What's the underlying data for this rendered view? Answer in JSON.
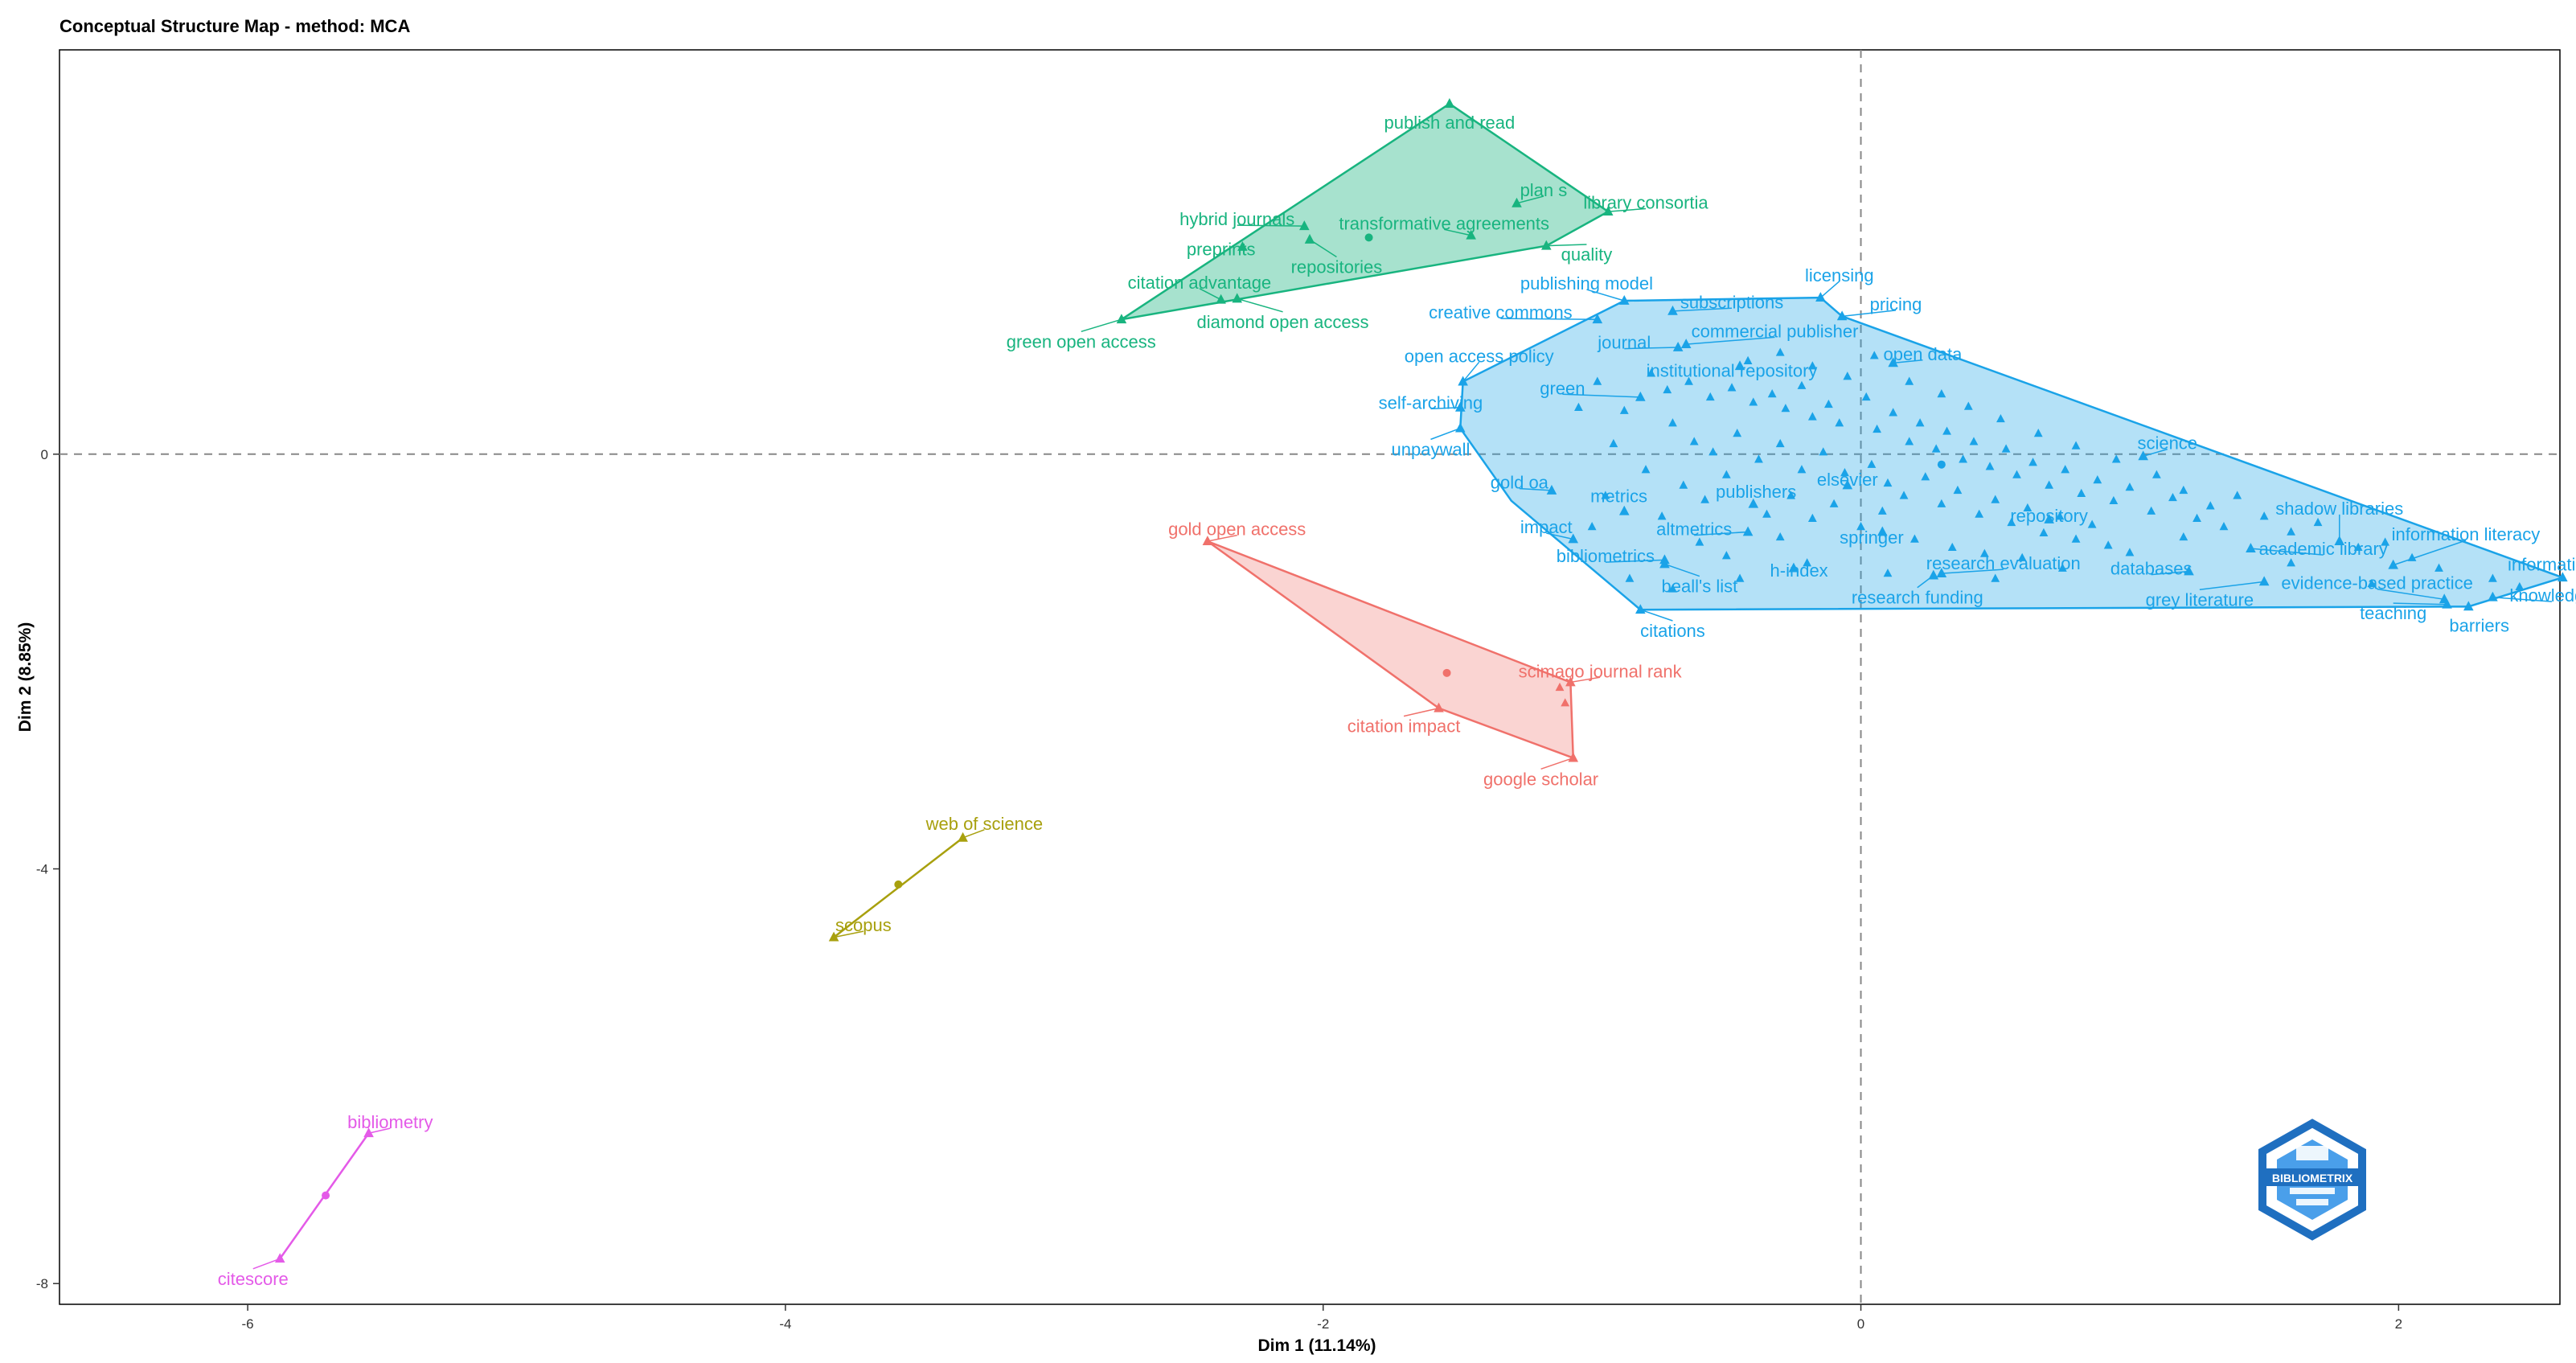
{
  "chart_data": {
    "type": "scatter",
    "title": "Conceptual Structure Map - method: MCA",
    "xlabel": "Dim 1 (11.14%)",
    "ylabel": "Dim 2 (8.85%)",
    "xlim": [
      -6.7,
      2.6
    ],
    "ylim": [
      -8.2,
      3.9
    ],
    "xticks": [
      -6,
      -4,
      -2,
      0,
      2
    ],
    "yticks": [
      -8,
      -4,
      0
    ],
    "reference_lines": {
      "x": 0,
      "y": 0
    },
    "logo": {
      "text": "BIBLIOMETRIX",
      "color": "#1f6fc0"
    },
    "clusters": [
      {
        "id": "green",
        "color": "#18b47f",
        "fill": "rgba(24,180,127,0.38)",
        "centroid": [
          -1.83,
          2.09
        ],
        "hull": [
          [
            -2.75,
            1.3
          ],
          [
            -1.53,
            3.38
          ],
          [
            -0.94,
            2.34
          ],
          [
            -1.17,
            2.01
          ]
        ],
        "points": [
          {
            "label": "publish and read",
            "x": -1.53,
            "y": 3.38,
            "lx": -1.53,
            "ly": 3.2
          },
          {
            "label": "plan s",
            "x": -1.28,
            "y": 2.42,
            "lx": -1.18,
            "ly": 2.55
          },
          {
            "label": "library consortia",
            "x": -0.94,
            "y": 2.34,
            "lx": -0.8,
            "ly": 2.43
          },
          {
            "label": "hybrid journals",
            "x": -2.07,
            "y": 2.2,
            "lx": -2.32,
            "ly": 2.27
          },
          {
            "label": "transformative agreements",
            "x": -1.45,
            "y": 2.11,
            "lx": -1.55,
            "ly": 2.23
          },
          {
            "label": "preprints",
            "x": -2.3,
            "y": 2.0,
            "lx": -2.38,
            "ly": 1.98
          },
          {
            "label": "repositories",
            "x": -2.05,
            "y": 2.07,
            "lx": -1.95,
            "ly": 1.81
          },
          {
            "label": "quality",
            "x": -1.17,
            "y": 2.01,
            "lx": -1.02,
            "ly": 1.93
          },
          {
            "label": "citation advantage",
            "x": -2.38,
            "y": 1.49,
            "lx": -2.46,
            "ly": 1.66
          },
          {
            "label": "diamond open access",
            "x": -2.32,
            "y": 1.5,
            "lx": -2.15,
            "ly": 1.28
          },
          {
            "label": "green open access",
            "x": -2.75,
            "y": 1.3,
            "lx": -2.9,
            "ly": 1.09
          }
        ]
      },
      {
        "id": "blue",
        "color": "#1aa3e8",
        "fill": "rgba(26,163,232,0.33)",
        "centroid": [
          0.3,
          -0.1
        ],
        "hull": [
          [
            -0.88,
            1.48
          ],
          [
            -0.15,
            1.51
          ],
          [
            -0.07,
            1.33
          ],
          [
            2.61,
            -1.19
          ],
          [
            2.26,
            -1.47
          ],
          [
            -0.82,
            -1.5
          ],
          [
            -1.3,
            -0.45
          ],
          [
            -1.49,
            0.25
          ],
          [
            -1.48,
            0.7
          ]
        ],
        "points": [
          {
            "label": "licensing",
            "x": -0.15,
            "y": 1.51,
            "lx": -0.08,
            "ly": 1.73
          },
          {
            "label": "pricing",
            "x": -0.07,
            "y": 1.33,
            "lx": 0.13,
            "ly": 1.45
          },
          {
            "label": "publishing model",
            "x": -0.88,
            "y": 1.48,
            "lx": -1.02,
            "ly": 1.65
          },
          {
            "label": "subscriptions",
            "x": -0.7,
            "y": 1.38,
            "lx": -0.48,
            "ly": 1.47
          },
          {
            "label": "creative commons",
            "x": -0.98,
            "y": 1.3,
            "lx": -1.34,
            "ly": 1.37
          },
          {
            "label": "commercial publisher",
            "x": -0.65,
            "y": 1.06,
            "lx": -0.32,
            "ly": 1.19
          },
          {
            "label": "journal",
            "x": -0.68,
            "y": 1.03,
            "lx": -0.88,
            "ly": 1.08
          },
          {
            "label": "open access policy",
            "x": -1.48,
            "y": 0.7,
            "lx": -1.42,
            "ly": 0.95
          },
          {
            "label": "institutional repository",
            "x": -0.45,
            "y": 0.85,
            "lx": -0.48,
            "ly": 0.81
          },
          {
            "label": "open data",
            "x": 0.12,
            "y": 0.88,
            "lx": 0.23,
            "ly": 0.97
          },
          {
            "label": "green",
            "x": -0.82,
            "y": 0.55,
            "lx": -1.11,
            "ly": 0.64
          },
          {
            "label": "self-archiving",
            "x": -1.49,
            "y": 0.45,
            "lx": -1.6,
            "ly": 0.5
          },
          {
            "label": "unpaywall",
            "x": -1.49,
            "y": 0.25,
            "lx": -1.6,
            "ly": 0.05
          },
          {
            "label": "science",
            "x": 1.05,
            "y": -0.02,
            "lx": 1.14,
            "ly": 0.11
          },
          {
            "label": "gold oa",
            "x": -1.15,
            "y": -0.35,
            "lx": -1.27,
            "ly": -0.27
          },
          {
            "label": "elsevier",
            "x": -0.05,
            "y": -0.3,
            "lx": -0.05,
            "ly": -0.24
          },
          {
            "label": "metrics",
            "x": -0.88,
            "y": -0.55,
            "lx": -0.9,
            "ly": -0.4
          },
          {
            "label": "publishers",
            "x": -0.4,
            "y": -0.48,
            "lx": -0.39,
            "ly": -0.36
          },
          {
            "label": "shadow libraries",
            "x": 1.78,
            "y": -0.84,
            "lx": 1.78,
            "ly": -0.52
          },
          {
            "label": "repository",
            "x": 0.7,
            "y": -0.63,
            "lx": 0.7,
            "ly": -0.59
          },
          {
            "label": "impact",
            "x": -1.07,
            "y": -0.82,
            "lx": -1.17,
            "ly": -0.7
          },
          {
            "label": "altmetrics",
            "x": -0.42,
            "y": -0.75,
            "lx": -0.62,
            "ly": -0.72
          },
          {
            "label": "springer",
            "x": 0.08,
            "y": -0.75,
            "lx": 0.04,
            "ly": -0.8
          },
          {
            "label": "information literacy",
            "x": 1.98,
            "y": -1.07,
            "lx": 2.25,
            "ly": -0.77
          },
          {
            "label": "academic library",
            "x": 1.45,
            "y": -0.91,
            "lx": 1.72,
            "ly": -0.91
          },
          {
            "label": "bibliometrics",
            "x": -0.73,
            "y": -1.02,
            "lx": -0.95,
            "ly": -0.98
          },
          {
            "label": "information access",
            "x": 2.61,
            "y": -1.19,
            "lx": 2.68,
            "ly": -1.06
          },
          {
            "label": "research evaluation",
            "x": 0.3,
            "y": -1.15,
            "lx": 0.53,
            "ly": -1.05
          },
          {
            "label": "databases",
            "x": 1.22,
            "y": -1.13,
            "lx": 1.08,
            "ly": -1.1
          },
          {
            "label": "h-index",
            "x": -0.25,
            "y": -1.1,
            "lx": -0.23,
            "ly": -1.12
          },
          {
            "label": "evidence-based practice",
            "x": 2.17,
            "y": -1.4,
            "lx": 1.92,
            "ly": -1.24
          },
          {
            "label": "beall's list",
            "x": -0.73,
            "y": -1.06,
            "lx": -0.6,
            "ly": -1.27
          },
          {
            "label": "knowledge",
            "x": 2.35,
            "y": -1.38,
            "lx": 2.57,
            "ly": -1.36
          },
          {
            "label": "research funding",
            "x": 0.27,
            "y": -1.17,
            "lx": 0.21,
            "ly": -1.38
          },
          {
            "label": "grey literature",
            "x": 1.5,
            "y": -1.23,
            "lx": 1.26,
            "ly": -1.4
          },
          {
            "label": "teaching",
            "x": 2.18,
            "y": -1.45,
            "lx": 1.98,
            "ly": -1.53
          },
          {
            "label": "barriers",
            "x": 2.26,
            "y": -1.47,
            "lx": 2.3,
            "ly": -1.65
          },
          {
            "label": "citations",
            "x": -0.82,
            "y": -1.5,
            "lx": -0.7,
            "ly": -1.7
          }
        ]
      },
      {
        "id": "red",
        "color": "#f0716b",
        "fill": "rgba(240,113,107,0.30)",
        "centroid": [
          -1.54,
          -2.11
        ],
        "hull": [
          [
            -2.43,
            -0.84
          ],
          [
            -1.08,
            -2.2
          ],
          [
            -1.07,
            -2.93
          ],
          [
            -1.57,
            -2.45
          ]
        ],
        "points": [
          {
            "label": "gold open access",
            "x": -2.43,
            "y": -0.84,
            "lx": -2.32,
            "ly": -0.72
          },
          {
            "label": "scimago journal rank",
            "x": -1.08,
            "y": -2.2,
            "lx": -0.97,
            "ly": -2.09
          },
          {
            "label": "citation impact",
            "x": -1.57,
            "y": -2.45,
            "lx": -1.7,
            "ly": -2.62
          },
          {
            "label": "google scholar",
            "x": -1.07,
            "y": -2.93,
            "lx": -1.19,
            "ly": -3.13
          }
        ]
      },
      {
        "id": "olive",
        "color": "#a8a00e",
        "fill": "none",
        "centroid": [
          -3.58,
          -4.15
        ],
        "hull": [
          [
            -3.34,
            -3.7
          ],
          [
            -3.82,
            -4.66
          ]
        ],
        "points": [
          {
            "label": "web of science",
            "x": -3.34,
            "y": -3.7,
            "lx": -3.26,
            "ly": -3.56
          },
          {
            "label": "scopus",
            "x": -3.82,
            "y": -4.66,
            "lx": -3.71,
            "ly": -4.54
          }
        ]
      },
      {
        "id": "magenta",
        "color": "#e45ae8",
        "fill": "none",
        "centroid": [
          -5.71,
          -7.15
        ],
        "hull": [
          [
            -5.55,
            -6.55
          ],
          [
            -5.88,
            -7.76
          ]
        ],
        "points": [
          {
            "label": "bibliometry",
            "x": -5.55,
            "y": -6.55,
            "lx": -5.47,
            "ly": -6.44
          },
          {
            "label": "citescore",
            "x": -5.88,
            "y": -7.76,
            "lx": -5.98,
            "ly": -7.95
          }
        ]
      }
    ],
    "unlabeled_points": {
      "color": "#1aa3e8",
      "points": [
        [
          -0.78,
          0.78
        ],
        [
          -0.72,
          0.62
        ],
        [
          -0.64,
          0.7
        ],
        [
          -0.56,
          0.55
        ],
        [
          -0.48,
          0.64
        ],
        [
          -0.4,
          0.5
        ],
        [
          -0.33,
          0.58
        ],
        [
          -0.28,
          0.44
        ],
        [
          -0.22,
          0.66
        ],
        [
          -0.18,
          0.36
        ],
        [
          -0.12,
          0.48
        ],
        [
          -0.08,
          0.3
        ],
        [
          0.02,
          0.55
        ],
        [
          0.06,
          0.24
        ],
        [
          0.12,
          0.4
        ],
        [
          0.18,
          0.12
        ],
        [
          0.22,
          0.3
        ],
        [
          0.28,
          0.05
        ],
        [
          0.32,
          0.22
        ],
        [
          0.38,
          -0.05
        ],
        [
          0.42,
          0.12
        ],
        [
          0.48,
          -0.12
        ],
        [
          0.54,
          0.05
        ],
        [
          0.58,
          -0.2
        ],
        [
          0.64,
          -0.08
        ],
        [
          0.7,
          -0.3
        ],
        [
          0.76,
          -0.15
        ],
        [
          0.82,
          -0.38
        ],
        [
          0.88,
          -0.25
        ],
        [
          0.94,
          -0.45
        ],
        [
          1.0,
          -0.32
        ],
        [
          1.08,
          -0.55
        ],
        [
          1.16,
          -0.42
        ],
        [
          1.25,
          -0.62
        ],
        [
          1.35,
          -0.7
        ],
        [
          -0.7,
          0.3
        ],
        [
          -0.62,
          0.12
        ],
        [
          -0.55,
          0.02
        ],
        [
          -0.46,
          0.2
        ],
        [
          -0.38,
          -0.05
        ],
        [
          -0.3,
          0.1
        ],
        [
          -0.22,
          -0.15
        ],
        [
          -0.14,
          0.02
        ],
        [
          -0.06,
          -0.18
        ],
        [
          0.04,
          -0.1
        ],
        [
          0.1,
          -0.28
        ],
        [
          0.16,
          -0.4
        ],
        [
          0.24,
          -0.22
        ],
        [
          0.3,
          -0.48
        ],
        [
          0.36,
          -0.35
        ],
        [
          0.44,
          -0.58
        ],
        [
          0.5,
          -0.44
        ],
        [
          0.56,
          -0.66
        ],
        [
          0.62,
          -0.52
        ],
        [
          0.68,
          -0.76
        ],
        [
          0.74,
          -0.6
        ],
        [
          0.8,
          -0.82
        ],
        [
          0.86,
          -0.68
        ],
        [
          0.92,
          -0.88
        ],
        [
          -0.88,
          0.42
        ],
        [
          -0.92,
          0.1
        ],
        [
          -0.66,
          -0.3
        ],
        [
          -0.58,
          -0.44
        ],
        [
          -0.5,
          -0.2
        ],
        [
          -0.35,
          -0.58
        ],
        [
          -0.26,
          -0.4
        ],
        [
          -0.18,
          -0.62
        ],
        [
          -0.1,
          -0.48
        ],
        [
          0.0,
          -0.7
        ],
        [
          0.08,
          -0.55
        ],
        [
          0.2,
          -0.82
        ],
        [
          0.34,
          -0.9
        ],
        [
          0.46,
          -0.96
        ],
        [
          0.6,
          -1.0
        ],
        [
          -0.8,
          -0.15
        ],
        [
          -0.74,
          -0.6
        ],
        [
          -0.6,
          -0.85
        ],
        [
          -0.5,
          -0.98
        ],
        [
          -0.3,
          -0.8
        ],
        [
          -0.42,
          0.9
        ],
        [
          -0.3,
          0.98
        ],
        [
          -0.18,
          0.85
        ],
        [
          -0.05,
          0.75
        ],
        [
          0.05,
          0.95
        ],
        [
          0.18,
          0.7
        ],
        [
          0.3,
          0.58
        ],
        [
          0.4,
          0.46
        ],
        [
          0.52,
          0.34
        ],
        [
          0.66,
          0.2
        ],
        [
          0.8,
          0.08
        ],
        [
          0.95,
          -0.05
        ],
        [
          1.1,
          -0.2
        ],
        [
          1.2,
          -0.35
        ],
        [
          1.3,
          -0.5
        ],
        [
          1.4,
          -0.4
        ],
        [
          1.5,
          -0.6
        ],
        [
          1.6,
          -0.75
        ],
        [
          1.7,
          -0.66
        ],
        [
          1.85,
          -0.9
        ],
        [
          1.95,
          -0.85
        ],
        [
          2.05,
          -1.0
        ],
        [
          2.15,
          -1.1
        ],
        [
          2.35,
          -1.2
        ],
        [
          2.45,
          -1.28
        ],
        [
          -0.98,
          0.7
        ],
        [
          -1.05,
          0.45
        ],
        [
          -0.95,
          -0.4
        ],
        [
          -1.0,
          -0.7
        ],
        [
          -0.86,
          -1.2
        ],
        [
          -0.7,
          -1.3
        ],
        [
          -0.45,
          -1.2
        ],
        [
          -0.2,
          -1.05
        ],
        [
          0.1,
          -1.15
        ],
        [
          0.5,
          -1.2
        ],
        [
          0.75,
          -1.1
        ],
        [
          1.0,
          -0.95
        ],
        [
          1.2,
          -0.8
        ],
        [
          1.6,
          -1.05
        ],
        [
          1.9,
          -1.25
        ]
      ]
    },
    "unlabeled_points_red": {
      "color": "#f0716b",
      "points": [
        [
          -1.12,
          -2.25
        ],
        [
          -1.1,
          -2.4
        ]
      ]
    }
  }
}
